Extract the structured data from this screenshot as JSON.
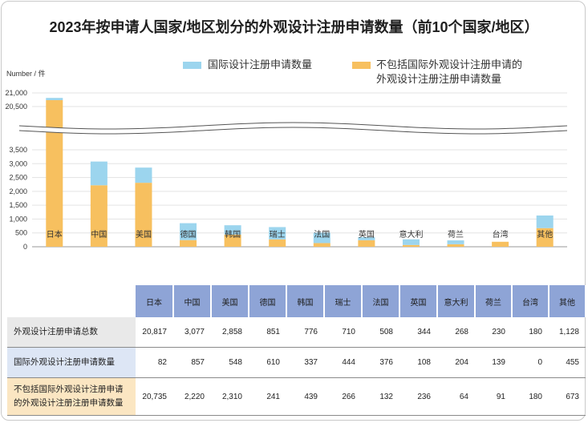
{
  "title": "2023年按申请人国家/地区划分的外观设计注册申请数量（前10个国家/地区）",
  "legend": {
    "intl": "国际设计注册申请数量",
    "excl_line1": "不包括国际外观设计注册申请的",
    "excl_line2": "外观设计注册注册申请数量"
  },
  "colors": {
    "intl": "#9cd5ee",
    "excl": "#f7c05f",
    "header": "#8ea4d6",
    "grid": "#e3e3e3"
  },
  "chart_data": {
    "type": "bar",
    "stacked": true,
    "ylabel": "Number / 件",
    "broken_axis": true,
    "ylim_lower": [
      0,
      3500
    ],
    "ylim_upper": [
      20500,
      21000
    ],
    "yticks_lower": [
      "0",
      "500",
      "1,000",
      "1,500",
      "2,000",
      "2,500",
      "3,000",
      "3,500"
    ],
    "yticks_upper": [
      "20,500",
      "21,000"
    ],
    "categories": [
      "日本",
      "中国",
      "美国",
      "德国",
      "韩国",
      "瑞士",
      "法国",
      "英国",
      "意大利",
      "荷兰",
      "台湾",
      "其他"
    ],
    "series": [
      {
        "name": "不包括国际外观设计注册申请的外观设计注册注册申请数量",
        "key": "excl",
        "values": [
          20735,
          2220,
          2310,
          241,
          439,
          266,
          132,
          236,
          64,
          91,
          180,
          673
        ]
      },
      {
        "name": "国际设计注册申请数量",
        "key": "intl",
        "values": [
          82,
          857,
          548,
          610,
          337,
          444,
          376,
          108,
          204,
          139,
          0,
          455
        ]
      }
    ],
    "totals": [
      20817,
      3077,
      2858,
      851,
      776,
      710,
      508,
      344,
      268,
      230,
      180,
      1128
    ]
  },
  "table": {
    "rows": [
      {
        "label": [
          "外观设计注册申请总数"
        ],
        "values": [
          "20,817",
          "3,077",
          "2,858",
          "851",
          "776",
          "710",
          "508",
          "344",
          "268",
          "230",
          "180",
          "1,128"
        ]
      },
      {
        "label": [
          "国际外观设计注册申请数量"
        ],
        "values": [
          "82",
          "857",
          "548",
          "610",
          "337",
          "444",
          "376",
          "108",
          "204",
          "139",
          "0",
          "455"
        ]
      },
      {
        "label": [
          "不包括国际外观设计注册申请",
          "的外观设计注册注册申请数量"
        ],
        "values": [
          "20,735",
          "2,220",
          "2,310",
          "241",
          "439",
          "266",
          "132",
          "236",
          "64",
          "91",
          "180",
          "673"
        ]
      }
    ]
  }
}
